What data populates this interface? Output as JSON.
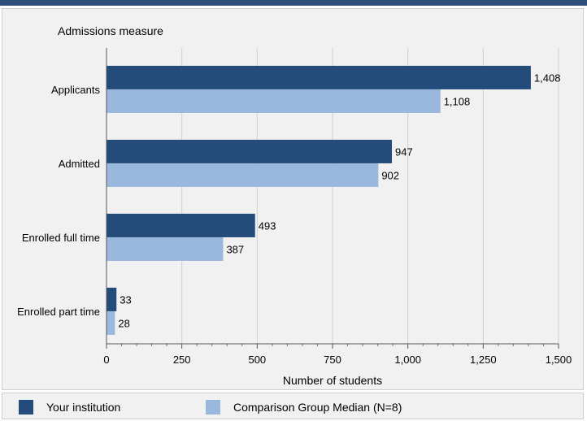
{
  "chart_data": {
    "type": "bar",
    "orientation": "horizontal",
    "title": "Admissions measure",
    "xlabel": "Number of students",
    "categories": [
      "Applicants",
      "Admitted",
      "Enrolled full time",
      "Enrolled part time"
    ],
    "series": [
      {
        "name": "Your institution",
        "color": "#244c7a",
        "values": [
          1408,
          947,
          493,
          33
        ],
        "labels": [
          "1,408",
          "947",
          "493",
          "33"
        ]
      },
      {
        "name": "Comparison Group Median (N=8)",
        "color": "#9ab8de",
        "values": [
          1108,
          902,
          387,
          28
        ],
        "labels": [
          "1,108",
          "902",
          "387",
          "28"
        ]
      }
    ],
    "xlim": [
      0,
      1500
    ],
    "xticks": [
      0,
      250,
      500,
      750,
      1000,
      1250,
      1500
    ],
    "xtick_labels": [
      "0",
      "250",
      "500",
      "750",
      "1,000",
      "1,250",
      "1,500"
    ],
    "grid": true,
    "legend_position": "bottom"
  }
}
